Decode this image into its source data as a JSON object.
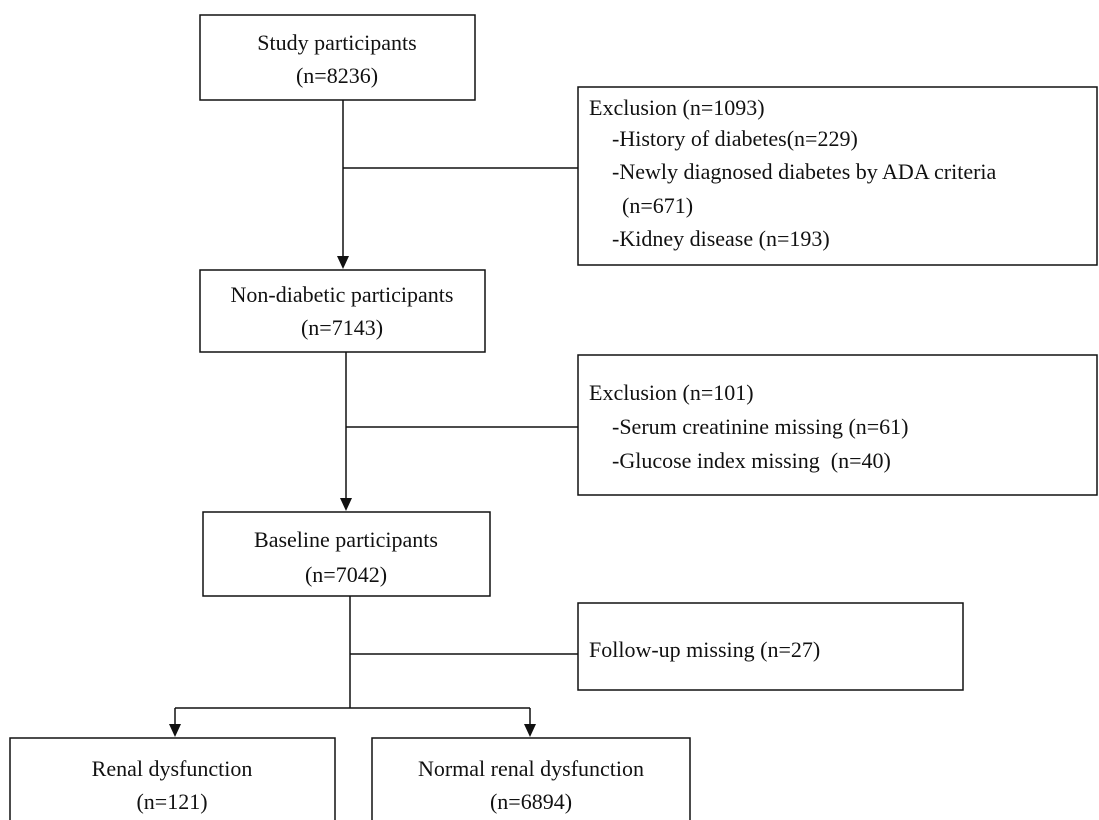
{
  "nodes": [
    {
      "lines": [
        "Study participants",
        "(n=8236)"
      ]
    },
    {
      "lines": [
        "Exclusion (n=1093)",
        "-History of diabetes(n=229)",
        "-Newly diagnosed diabetes by ADA criteria",
        "(n=671)",
        "-Kidney disease (n=193)"
      ]
    },
    {
      "lines": [
        "Non-diabetic participants",
        "(n=7143)"
      ]
    },
    {
      "lines": [
        "Exclusion (n=101)",
        "-Serum creatinine missing (n=61)",
        "-Glucose index missing  (n=40)"
      ]
    },
    {
      "lines": [
        "Baseline participants",
        "(n=7042)"
      ]
    },
    {
      "lines": [
        "Follow-up missing (n=27)"
      ]
    },
    {
      "lines": [
        "Renal dysfunction",
        "(n=121)"
      ]
    },
    {
      "lines": [
        "Normal renal dysfunction",
        "(n=6894)"
      ]
    }
  ]
}
